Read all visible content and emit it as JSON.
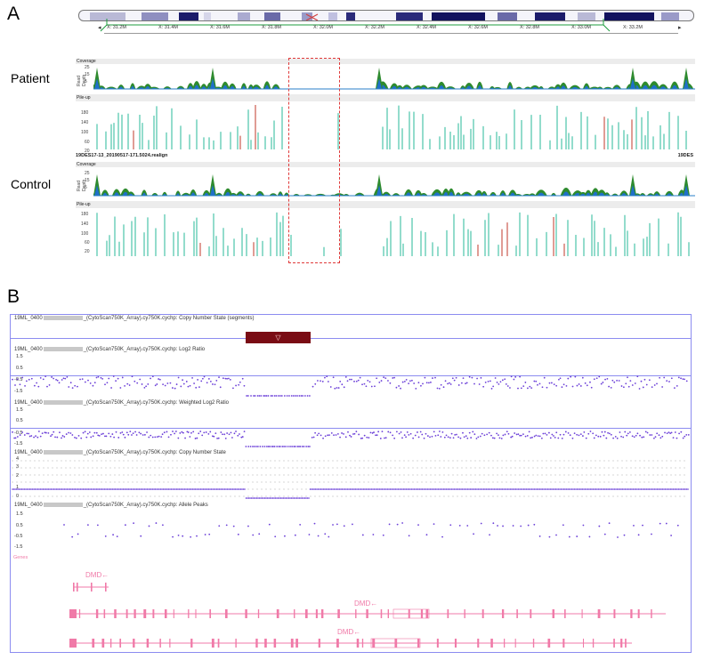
{
  "panel_a": {
    "letter": "A",
    "chrom_ticks": [
      "X: 31.2M",
      "X: 31.4M",
      "X: 31.6M",
      "X: 31.8M",
      "X: 32.0M",
      "X: 32.2M",
      "X: 32.4M",
      "X: 32.6M",
      "X: 32.8M",
      "X: 33.0M",
      "X: 33.2M"
    ],
    "patient_label": "Patient",
    "control_label": "Control",
    "coverage_header": "Coverage",
    "pileup_header": "Pile-up",
    "read_depth_label": "Read Depth",
    "depth_ticks": [
      "25",
      "15",
      "5"
    ],
    "pileup_ticks": [
      "180",
      "140",
      "100",
      "60",
      "20"
    ],
    "control_file": "19DES17-13_20190517-171.5024.realign",
    "control_file_right": "19DES",
    "colors": {
      "coverage_green": "#2e8b2e",
      "coverage_blue": "#1f6fc9",
      "pileup": "#27b89a",
      "highlight": "#e03a3a"
    }
  },
  "panel_b": {
    "letter": "B",
    "sample_prefix": "19ML_0400",
    "tracks": [
      {
        "suffix": "_(CytoScan750K_Array).cy750K.cychp: Copy Number State (segments)"
      },
      {
        "suffix": "_(CytoScan750K_Array).cy750K.cychp: Log2 Ratio",
        "ticks": [
          "1.5",
          "0.5",
          "-0.5",
          "-1.5"
        ]
      },
      {
        "suffix": "_(CytoScan750K_Array).cy750K.cychp: Weighted Log2 Ratio",
        "ticks": [
          "1.5",
          "0.5",
          "-0.5",
          "-1.5"
        ]
      },
      {
        "suffix": "_(CytoScan750K_Array).cy750K.cychp: Copy Number State",
        "ticks": [
          "4",
          "3",
          "2",
          "1",
          "0"
        ]
      },
      {
        "suffix": "_(CytoScan750K_Array).cy750K.cychp: Allele Peaks",
        "ticks": [
          "1.5",
          "0.5",
          "-0.5",
          "-1.5"
        ]
      }
    ],
    "segment_marker": "▽",
    "genes_label": "Genes",
    "gene_labels": [
      "DMD←",
      "DMD←",
      "DMD←"
    ],
    "colors": {
      "points": "#6b3fd8",
      "segment": "#7a0c14",
      "gene": "#f07aa8",
      "frame": "#8c8cf0"
    }
  }
}
